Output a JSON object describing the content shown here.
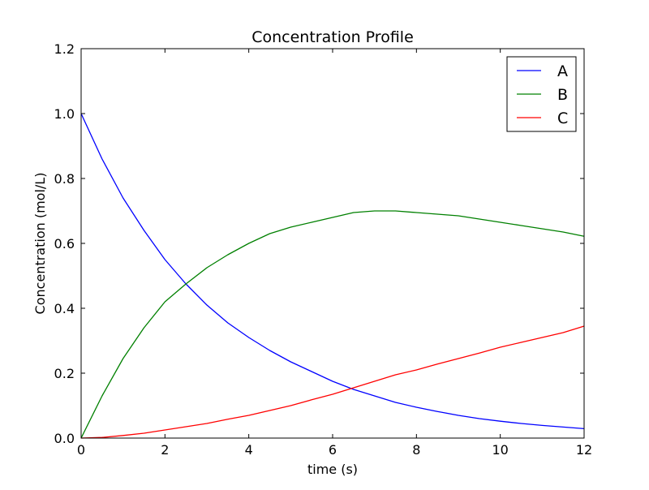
{
  "chart_data": {
    "type": "line",
    "title": "Concentration Profile",
    "xlabel": "time (s)",
    "ylabel": "Concentration (mol/L)",
    "xlim": [
      0,
      12
    ],
    "ylim": [
      0,
      1.2
    ],
    "xticks": [
      0,
      2,
      4,
      6,
      8,
      10,
      12
    ],
    "xtick_labels": [
      "0",
      "2",
      "4",
      "6",
      "8",
      "10",
      "12"
    ],
    "yticks": [
      0,
      0.2,
      0.4,
      0.6,
      0.8,
      1.0,
      1.2
    ],
    "ytick_labels": [
      "0.0",
      "0.2",
      "0.4",
      "0.6",
      "0.8",
      "1.0",
      "1.2"
    ],
    "grid": false,
    "legend_position": "top-right",
    "x": [
      0,
      0.5,
      1,
      1.5,
      2,
      2.5,
      3,
      3.5,
      4,
      4.5,
      5,
      5.5,
      6,
      6.5,
      7,
      7.5,
      8,
      8.5,
      9,
      9.5,
      10,
      10.5,
      11,
      11.5,
      12
    ],
    "series": [
      {
        "name": "A",
        "color": "#0000ff",
        "values": [
          1.0,
          0.86,
          0.74,
          0.64,
          0.55,
          0.475,
          0.41,
          0.355,
          0.31,
          0.27,
          0.235,
          0.205,
          0.175,
          0.15,
          0.13,
          0.11,
          0.095,
          0.082,
          0.07,
          0.06,
          0.052,
          0.045,
          0.039,
          0.034,
          0.029
        ]
      },
      {
        "name": "B",
        "color": "#008000",
        "values": [
          0.0,
          0.13,
          0.245,
          0.34,
          0.42,
          0.475,
          0.525,
          0.565,
          0.6,
          0.63,
          0.65,
          0.665,
          0.68,
          0.695,
          0.7,
          0.7,
          0.695,
          0.69,
          0.685,
          0.675,
          0.665,
          0.655,
          0.645,
          0.635,
          0.622
        ]
      },
      {
        "name": "C",
        "color": "#ff0000",
        "values": [
          0.0,
          0.002,
          0.008,
          0.015,
          0.025,
          0.035,
          0.045,
          0.058,
          0.07,
          0.085,
          0.1,
          0.118,
          0.135,
          0.155,
          0.175,
          0.195,
          0.21,
          0.228,
          0.245,
          0.262,
          0.28,
          0.295,
          0.31,
          0.325,
          0.345
        ]
      }
    ]
  }
}
